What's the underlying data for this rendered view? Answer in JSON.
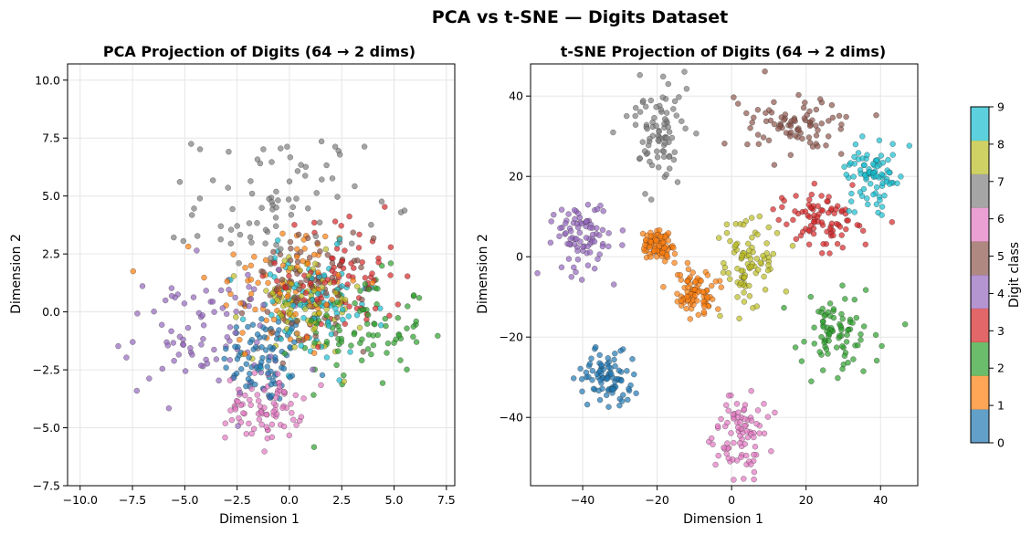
{
  "figure": {
    "suptitle": "PCA vs t-SNE — Digits Dataset"
  },
  "chart_data": [
    {
      "type": "scatter",
      "title": "PCA Projection of Digits (64 → 2 dims)",
      "xlabel": "Dimension 1",
      "ylabel": "Dimension 2",
      "xlim": [
        -10.6,
        7.9
      ],
      "ylim": [
        -7.5,
        10.7
      ],
      "xticks": [
        -10.0,
        -7.5,
        -5.0,
        -2.5,
        0.0,
        2.5,
        5.0,
        7.5
      ],
      "xtick_labels": [
        "−10.0",
        "−7.5",
        "−5.0",
        "−2.5",
        "0.0",
        "2.5",
        "5.0",
        "7.5"
      ],
      "yticks": [
        -7.5,
        -5.0,
        -2.5,
        0.0,
        2.5,
        5.0,
        7.5,
        10.0
      ],
      "ytick_labels": [
        "−7.5",
        "−5.0",
        "−2.5",
        "0.0",
        "2.5",
        "5.0",
        "7.5",
        "10.0"
      ],
      "grid": true,
      "n_points_per_class": 85,
      "clusters": [
        {
          "digit": 0,
          "cx": -1.2,
          "cy": -2.0,
          "sx": 1.0,
          "sy": 1.0
        },
        {
          "digit": 1,
          "cx": -0.2,
          "cy": 1.0,
          "sx": 1.8,
          "sy": 1.6
        },
        {
          "digit": 2,
          "cx": 3.5,
          "cy": -0.8,
          "sx": 1.5,
          "sy": 1.2
        },
        {
          "digit": 3,
          "cx": 2.5,
          "cy": 1.5,
          "sx": 1.5,
          "sy": 1.3
        },
        {
          "digit": 4,
          "cx": -4.2,
          "cy": -0.9,
          "sx": 1.9,
          "sy": 1.4
        },
        {
          "digit": 5,
          "cx": 1.0,
          "cy": 0.8,
          "sx": 1.4,
          "sy": 1.2
        },
        {
          "digit": 6,
          "cx": -1.2,
          "cy": -4.1,
          "sx": 0.9,
          "sy": 0.7
        },
        {
          "digit": 7,
          "cx": -0.5,
          "cy": 4.6,
          "sx": 2.0,
          "sy": 1.6
        },
        {
          "digit": 8,
          "cx": 0.7,
          "cy": 0.3,
          "sx": 1.4,
          "sy": 1.1
        },
        {
          "digit": 9,
          "cx": 1.0,
          "cy": 0.2,
          "sx": 1.5,
          "sy": 1.2
        }
      ]
    },
    {
      "type": "scatter",
      "title": "t-SNE Projection of Digits (64 → 2 dims)",
      "xlabel": "Dimension 1",
      "ylabel": "Dimension 2",
      "xlim": [
        -54,
        50
      ],
      "ylim": [
        -57,
        48
      ],
      "xticks": [
        -40,
        -20,
        0,
        20,
        40
      ],
      "xtick_labels": [
        "−40",
        "−20",
        "0",
        "20",
        "40"
      ],
      "yticks": [
        -40,
        -20,
        0,
        20,
        40
      ],
      "ytick_labels": [
        "−40",
        "−20",
        "0",
        "20",
        "40"
      ],
      "grid": true,
      "n_points_per_class": 85,
      "clusters": [
        {
          "digit": 0,
          "cx": -33,
          "cy": -30,
          "sx": 4.0,
          "sy": 3.5
        },
        {
          "digit": 1,
          "cx": -10,
          "cy": -9,
          "sx": 3.0,
          "sy": 3.0
        },
        {
          "digit": 1,
          "cx": -20,
          "cy": 3,
          "sx": 2.0,
          "sy": 2.0
        },
        {
          "digit": 2,
          "cx": 27,
          "cy": -19,
          "sx": 5.0,
          "sy": 4.5
        },
        {
          "digit": 3,
          "cx": 24,
          "cy": 9,
          "sx": 5.0,
          "sy": 3.5
        },
        {
          "digit": 4,
          "cx": -40,
          "cy": 5,
          "sx": 4.0,
          "sy": 5.0
        },
        {
          "digit": 5,
          "cx": 17,
          "cy": 33,
          "sx": 9.0,
          "sy": 3.5
        },
        {
          "digit": 6,
          "cx": 2,
          "cy": -44,
          "sx": 3.5,
          "sy": 5.0
        },
        {
          "digit": 7,
          "cx": -20,
          "cy": 31,
          "sx": 4.0,
          "sy": 6.0
        },
        {
          "digit": 8,
          "cx": 5,
          "cy": -2,
          "sx": 4.0,
          "sy": 6.0
        },
        {
          "digit": 9,
          "cx": 38,
          "cy": 20,
          "sx": 3.5,
          "sy": 4.5
        }
      ]
    }
  ],
  "colorbar": {
    "label": "Digit class",
    "ticks": [
      "0",
      "1",
      "2",
      "3",
      "4",
      "5",
      "6",
      "7",
      "8",
      "9"
    ],
    "colors": [
      "#1f77b4",
      "#ff7f0e",
      "#2ca02c",
      "#d62728",
      "#9467bd",
      "#8c564b",
      "#e377c2",
      "#7f7f7f",
      "#bcbd22",
      "#17becf"
    ]
  }
}
